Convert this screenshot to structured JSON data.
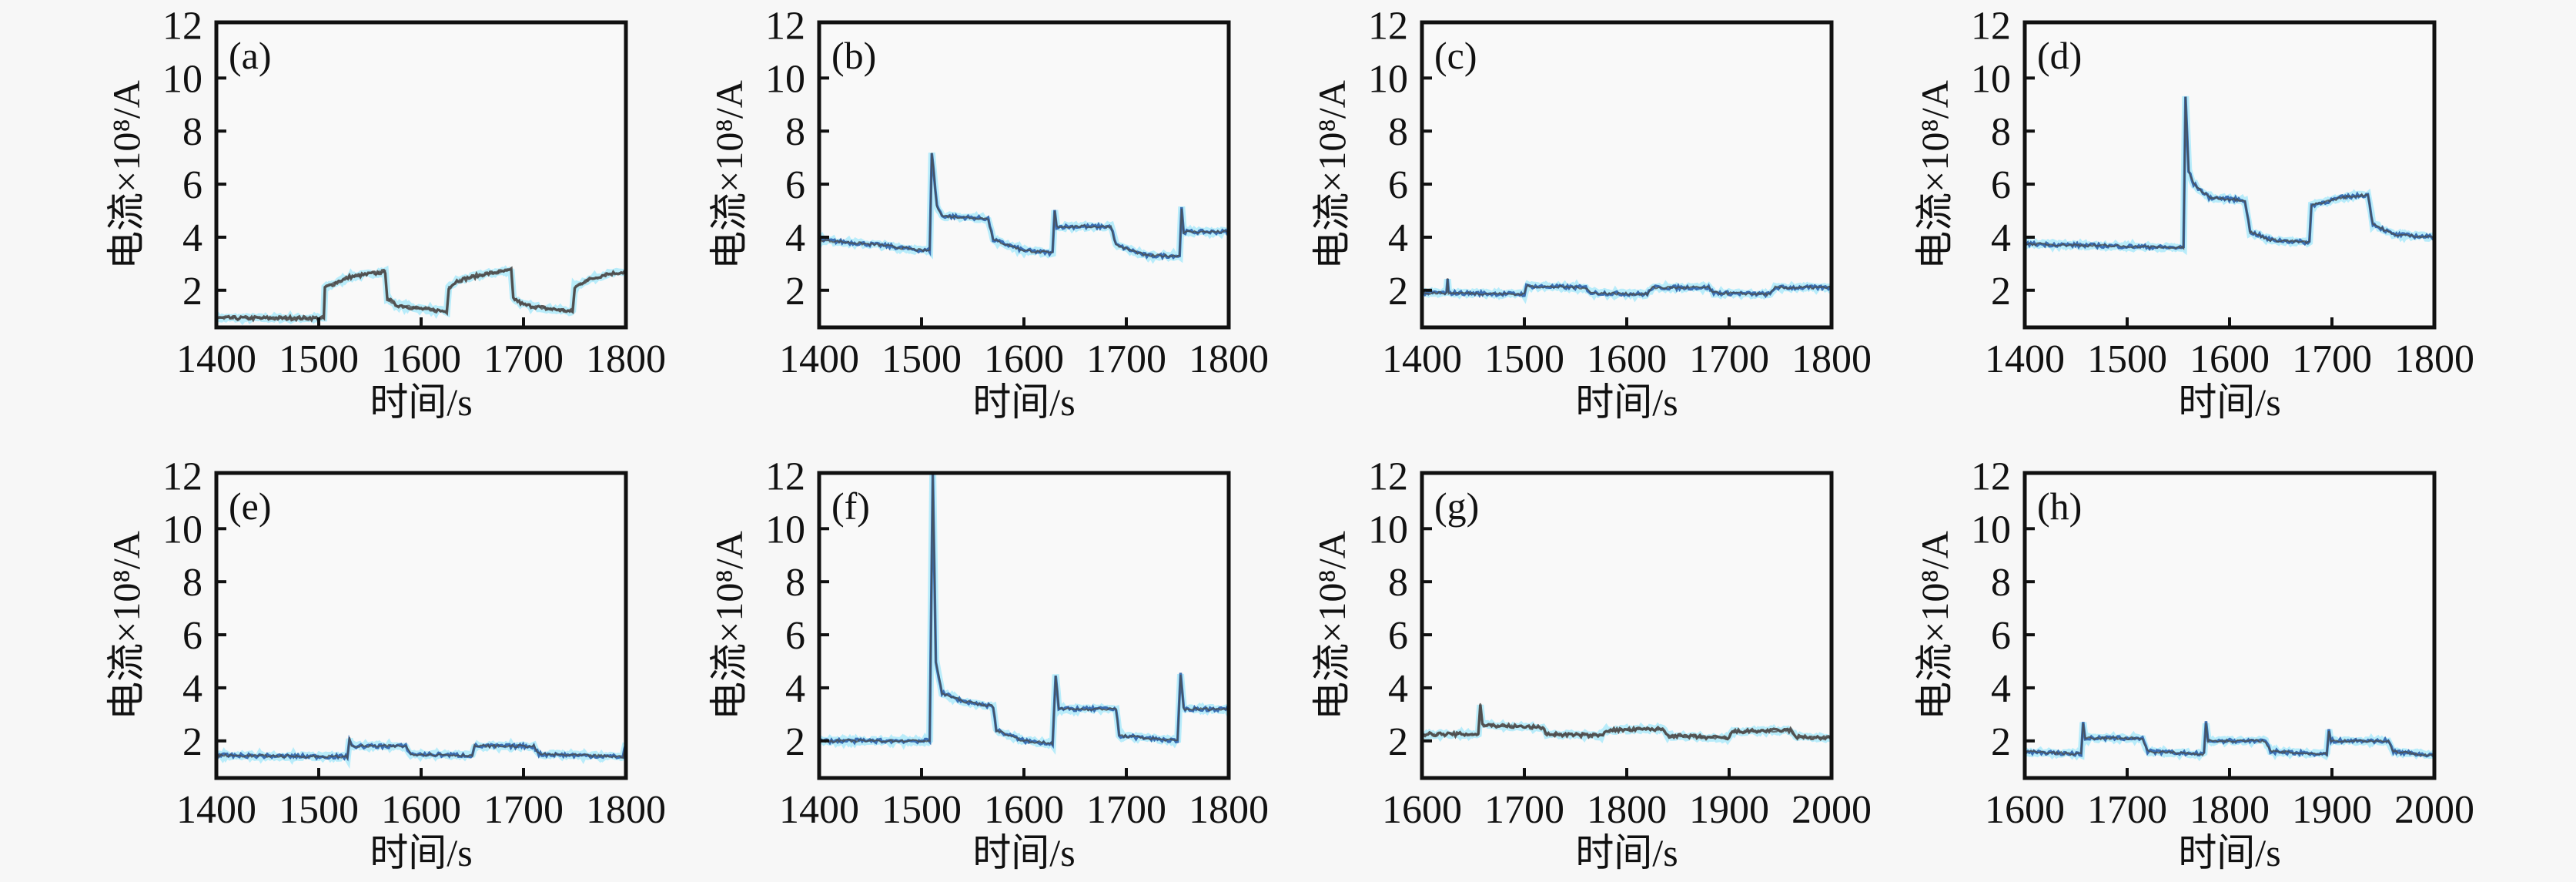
{
  "chart_data": [
    {
      "type": "line",
      "panel_label": "(a)",
      "xlabel": "时间/s",
      "ylabel": "电流×10⁸/A",
      "xlim": [
        1400,
        1800
      ],
      "ylim": [
        0.6,
        12.1
      ],
      "xticks": [
        "1400",
        "1500",
        "1600",
        "1700",
        "1800"
      ],
      "yticks": [
        "2",
        "4",
        "6",
        "8",
        "10",
        "12"
      ],
      "color": "#5a5a5a",
      "x": [
        1400,
        1505,
        1506,
        1530,
        1565,
        1567,
        1575,
        1600,
        1625,
        1627,
        1635,
        1660,
        1688,
        1690,
        1700,
        1725,
        1748,
        1750,
        1760,
        1780,
        1800
      ],
      "y": [
        0.95,
        0.95,
        2.1,
        2.5,
        2.7,
        1.7,
        1.45,
        1.3,
        1.2,
        2.1,
        2.35,
        2.6,
        2.75,
        1.7,
        1.45,
        1.3,
        1.2,
        2.1,
        2.35,
        2.6,
        2.7
      ]
    },
    {
      "type": "line",
      "panel_label": "(b)",
      "xlabel": "时间/s",
      "ylabel": "电流×10⁸/A",
      "xlim": [
        1400,
        1800
      ],
      "ylim": [
        0.6,
        12.1
      ],
      "xticks": [
        "1400",
        "1500",
        "1600",
        "1700",
        "1800"
      ],
      "yticks": [
        "2",
        "4",
        "6",
        "8",
        "10",
        "12"
      ],
      "color": "#3b6fb3",
      "x": [
        1400,
        1460,
        1500,
        1508,
        1510,
        1515,
        1520,
        1565,
        1570,
        1600,
        1628,
        1630,
        1632,
        1685,
        1690,
        1720,
        1752,
        1754,
        1756,
        1800
      ],
      "y": [
        3.9,
        3.7,
        3.5,
        3.5,
        7.2,
        5.2,
        4.8,
        4.7,
        3.9,
        3.5,
        3.4,
        5.0,
        4.4,
        4.4,
        3.7,
        3.3,
        3.3,
        5.1,
        4.2,
        4.2
      ]
    },
    {
      "type": "line",
      "panel_label": "(c)",
      "xlabel": "时间/s",
      "ylabel": "电流×10⁸/A",
      "xlim": [
        1400,
        1800
      ],
      "ylim": [
        0.6,
        12.1
      ],
      "xticks": [
        "1400",
        "1500",
        "1600",
        "1700",
        "1800"
      ],
      "yticks": [
        "2",
        "4",
        "6",
        "8",
        "10",
        "12"
      ],
      "color": "#3b6fb3",
      "x": [
        1400,
        1424,
        1425,
        1426,
        1500,
        1502,
        1560,
        1565,
        1620,
        1625,
        1680,
        1685,
        1740,
        1745,
        1800
      ],
      "y": [
        1.9,
        1.9,
        2.4,
        1.9,
        1.85,
        2.15,
        2.1,
        1.9,
        1.85,
        2.1,
        2.1,
        1.9,
        1.85,
        2.1,
        2.1
      ]
    },
    {
      "type": "line",
      "panel_label": "(d)",
      "xlabel": "时间/s",
      "ylabel": "电流×10⁸/A",
      "xlim": [
        1400,
        1800
      ],
      "ylim": [
        0.6,
        12.1
      ],
      "xticks": [
        "1400",
        "1500",
        "1600",
        "1700",
        "1800"
      ],
      "yticks": [
        "2",
        "4",
        "6",
        "8",
        "10",
        "12"
      ],
      "color": "#3b6fb3",
      "x": [
        1400,
        1555,
        1557,
        1560,
        1565,
        1580,
        1615,
        1620,
        1640,
        1678,
        1680,
        1710,
        1735,
        1740,
        1760,
        1800
      ],
      "y": [
        3.75,
        3.6,
        9.3,
        6.5,
        6.0,
        5.5,
        5.4,
        4.2,
        3.9,
        3.8,
        5.2,
        5.5,
        5.6,
        4.5,
        4.1,
        4.0
      ]
    },
    {
      "type": "line",
      "panel_label": "(e)",
      "xlabel": "时间/s",
      "ylabel": "电流×10⁸/A",
      "xlim": [
        1400,
        1800
      ],
      "ylim": [
        0.6,
        12.1
      ],
      "xticks": [
        "1400",
        "1500",
        "1600",
        "1700",
        "1800"
      ],
      "yticks": [
        "2",
        "4",
        "6",
        "8",
        "10",
        "12"
      ],
      "color": "#3b6fb3",
      "x": [
        1400,
        1528,
        1530,
        1532,
        1585,
        1590,
        1650,
        1652,
        1710,
        1715,
        1797,
        1800
      ],
      "y": [
        1.45,
        1.4,
        2.1,
        1.8,
        1.8,
        1.5,
        1.45,
        1.8,
        1.8,
        1.5,
        1.4,
        1.9
      ]
    },
    {
      "type": "line",
      "panel_label": "(f)",
      "xlabel": "时间/s",
      "ylabel": "电流×10⁸/A",
      "xlim": [
        1400,
        1800
      ],
      "ylim": [
        0.6,
        12.1
      ],
      "xticks": [
        "1400",
        "1500",
        "1600",
        "1700",
        "1800"
      ],
      "yticks": [
        "2",
        "4",
        "6",
        "8",
        "10",
        "12"
      ],
      "color": "#3b6fb3",
      "x": [
        1400,
        1508,
        1511,
        1514,
        1520,
        1540,
        1570,
        1573,
        1600,
        1628,
        1631,
        1634,
        1690,
        1693,
        1750,
        1753,
        1756,
        1800
      ],
      "y": [
        2.0,
        2.0,
        12.1,
        5.0,
        3.8,
        3.5,
        3.3,
        2.4,
        2.0,
        1.9,
        4.5,
        3.2,
        3.2,
        2.2,
        2.0,
        4.5,
        3.2,
        3.2
      ]
    },
    {
      "type": "line",
      "panel_label": "(g)",
      "xlabel": "时间/s",
      "ylabel": "电流×10⁸/A",
      "xlim": [
        1600,
        2000
      ],
      "ylim": [
        0.6,
        12.1
      ],
      "xticks": [
        "1600",
        "1700",
        "1800",
        "1900",
        "2000"
      ],
      "yticks": [
        "2",
        "4",
        "6",
        "8",
        "10",
        "12"
      ],
      "color": "#5a5a5a",
      "x": [
        1600,
        1655,
        1657,
        1659,
        1718,
        1722,
        1775,
        1780,
        1835,
        1840,
        1900,
        1903,
        1960,
        1965,
        2000
      ],
      "y": [
        2.25,
        2.25,
        3.4,
        2.6,
        2.5,
        2.25,
        2.2,
        2.4,
        2.45,
        2.2,
        2.1,
        2.35,
        2.4,
        2.15,
        2.1
      ]
    },
    {
      "type": "line",
      "panel_label": "(h)",
      "xlabel": "时间/s",
      "ylabel": "电流×10⁸/A",
      "xlim": [
        1600,
        2000
      ],
      "ylim": [
        0.6,
        12.1
      ],
      "xticks": [
        "1600",
        "1700",
        "1800",
        "1900",
        "2000"
      ],
      "yticks": [
        "2",
        "4",
        "6",
        "8",
        "10",
        "12"
      ],
      "color": "#3b6fb3",
      "x": [
        1600,
        1655,
        1657,
        1659,
        1715,
        1720,
        1775,
        1777,
        1779,
        1835,
        1840,
        1895,
        1897,
        1899,
        1955,
        1960,
        2000
      ],
      "y": [
        1.6,
        1.5,
        2.7,
        2.1,
        2.1,
        1.6,
        1.5,
        2.7,
        2.0,
        2.0,
        1.6,
        1.5,
        2.4,
        2.0,
        2.0,
        1.6,
        1.45
      ]
    }
  ]
}
